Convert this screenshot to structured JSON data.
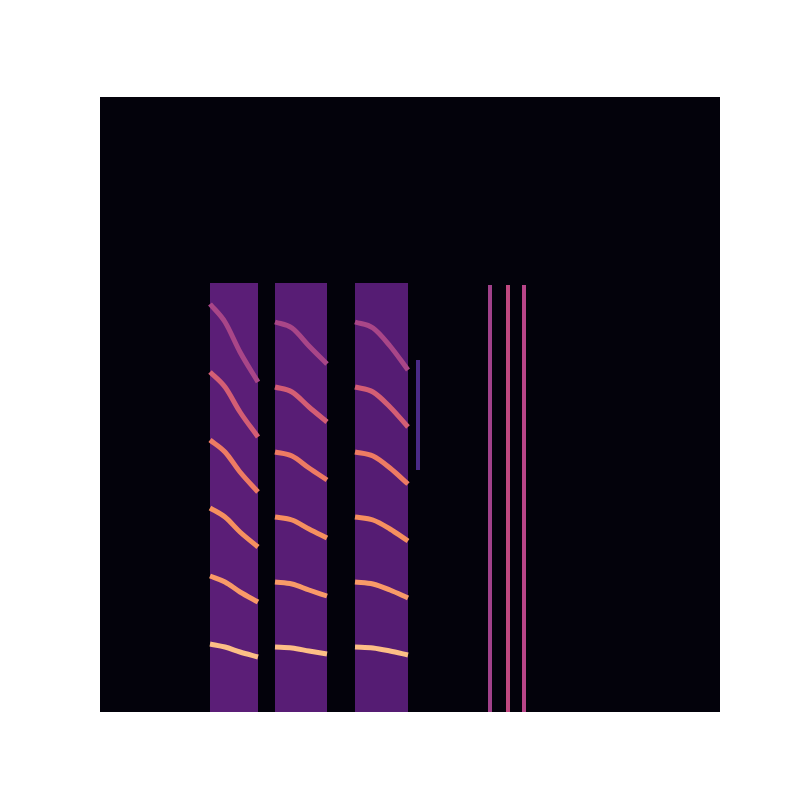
{
  "chart_data": {
    "type": "spectrogram",
    "xlim": [
      0,
      620
    ],
    "ylim": [
      0,
      615
    ],
    "tick_labels": false,
    "grid": false,
    "calls": [
      {
        "x": [
          110,
          158
        ],
        "y": [
          0,
          429
        ],
        "color": "#5b1e77"
      },
      {
        "x": [
          175,
          227
        ],
        "y": [
          0,
          429
        ],
        "color": "#581d75"
      },
      {
        "x": [
          255,
          308
        ],
        "y": [
          0,
          429
        ],
        "color": "#551c73"
      }
    ],
    "series": [
      {
        "color": "#fdbf86",
        "x": [
          110,
          125,
          140,
          158
        ],
        "values": [
          68,
          65,
          60,
          55
        ]
      },
      {
        "color": "#f99a68",
        "x": [
          110,
          125,
          140,
          158
        ],
        "values": [
          136,
          130,
          120,
          110
        ]
      },
      {
        "color": "#f6905f",
        "x": [
          110,
          125,
          140,
          158
        ],
        "values": [
          204,
          195,
          180,
          165
        ]
      },
      {
        "color": "#ee7b63",
        "x": [
          110,
          125,
          140,
          158
        ],
        "values": [
          272,
          260,
          240,
          220
        ]
      },
      {
        "color": "#d45e74",
        "x": [
          110,
          125,
          140,
          158
        ],
        "values": [
          340,
          325,
          300,
          275
        ]
      },
      {
        "color": "#a94688",
        "x": [
          110,
          125,
          140,
          158
        ],
        "values": [
          408,
          390,
          360,
          330
        ]
      },
      {
        "color": "#fdbf86",
        "x": [
          175,
          192,
          209,
          227
        ],
        "values": [
          65,
          64,
          61,
          58
        ]
      },
      {
        "color": "#f99a68",
        "x": [
          175,
          192,
          209,
          227
        ],
        "values": [
          130,
          128,
          122,
          116
        ]
      },
      {
        "color": "#f6905f",
        "x": [
          175,
          192,
          209,
          227
        ],
        "values": [
          195,
          192,
          183,
          174
        ]
      },
      {
        "color": "#ee7b63",
        "x": [
          175,
          192,
          209,
          227
        ],
        "values": [
          260,
          256,
          244,
          232
        ]
      },
      {
        "color": "#d45e74",
        "x": [
          175,
          192,
          209,
          227
        ],
        "values": [
          325,
          320,
          305,
          290
        ]
      },
      {
        "color": "#a94688",
        "x": [
          175,
          192,
          209,
          227
        ],
        "values": [
          390,
          384,
          366,
          348
        ]
      },
      {
        "color": "#fdbf86",
        "x": [
          255,
          273,
          290,
          308
        ],
        "values": [
          65,
          64,
          61,
          57
        ]
      },
      {
        "color": "#f99a68",
        "x": [
          255,
          273,
          290,
          308
        ],
        "values": [
          130,
          128,
          122,
          114
        ]
      },
      {
        "color": "#f6905f",
        "x": [
          255,
          273,
          290,
          308
        ],
        "values": [
          195,
          192,
          183,
          171
        ]
      },
      {
        "color": "#ee7b63",
        "x": [
          255,
          273,
          290,
          308
        ],
        "values": [
          260,
          256,
          244,
          228
        ]
      },
      {
        "color": "#d45e74",
        "x": [
          255,
          273,
          290,
          308
        ],
        "values": [
          325,
          320,
          305,
          285
        ]
      },
      {
        "color": "#a94688",
        "x": [
          255,
          273,
          290,
          308
        ],
        "values": [
          390,
          384,
          366,
          342
        ]
      }
    ],
    "clicks": [
      {
        "x": 318,
        "y": [
          242,
          352
        ],
        "color": "#4a2a88"
      },
      {
        "x": 390,
        "y": [
          0,
          427
        ],
        "color": "#a0408a"
      },
      {
        "x": 408,
        "y": [
          0,
          427
        ],
        "color": "#c04880"
      },
      {
        "x": 424,
        "y": [
          0,
          427
        ],
        "color": "#b84488"
      }
    ]
  }
}
